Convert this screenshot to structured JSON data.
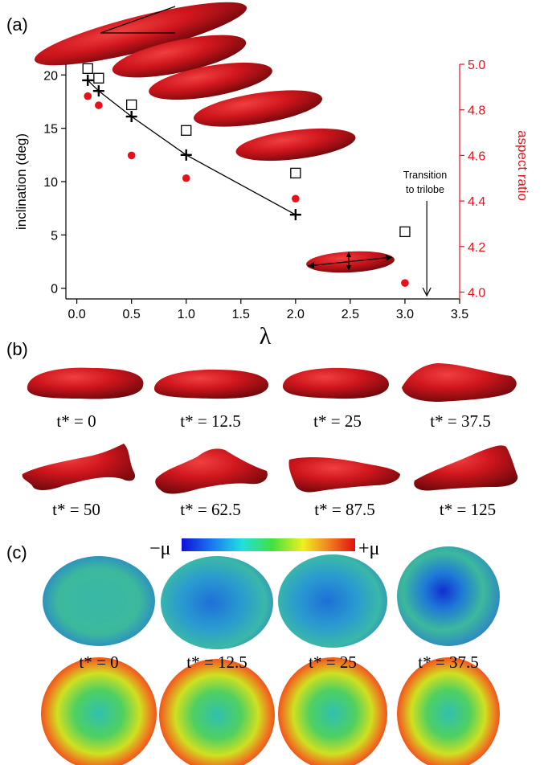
{
  "panel_labels": {
    "a": "(a)",
    "b": "(b)",
    "c": "(c)"
  },
  "chart_data": {
    "type": "scatter",
    "xlabel": "λ",
    "ylabel": "inclination (deg)",
    "y2label": "aspect ratio",
    "xlim": [
      -0.1,
      3.5
    ],
    "ylim": [
      -1,
      21
    ],
    "y2lim": [
      3.97,
      5.0
    ],
    "xticks": [
      "0.0",
      "0.5",
      "1.0",
      "1.5",
      "2.0",
      "2.5",
      "3.0",
      "3.5"
    ],
    "yticks": [
      "0",
      "5",
      "10",
      "15",
      "20"
    ],
    "y2ticks": [
      "4.0",
      "4.2",
      "4.4",
      "4.6",
      "4.8",
      "5.0"
    ],
    "grid": false,
    "series": [
      {
        "marker": "plus-line",
        "color": "#000000",
        "x": [
          0.1,
          0.2,
          0.5,
          1.0,
          2.0
        ],
        "y": [
          19.5,
          18.5,
          16.1,
          12.5,
          6.9
        ]
      },
      {
        "marker": "open-square",
        "color": "#000000",
        "x": [
          0.1,
          0.2,
          0.5,
          1.0,
          2.0,
          3.0
        ],
        "y": [
          20.6,
          19.7,
          17.2,
          14.8,
          10.8,
          5.3
        ]
      },
      {
        "marker": "red-dot",
        "color": "#e8101a",
        "axis": "right",
        "x": [
          0.1,
          0.2,
          0.5,
          1.0,
          2.0,
          3.0
        ],
        "y": [
          4.86,
          4.82,
          4.6,
          4.5,
          4.41,
          4.04
        ]
      }
    ],
    "annotation": {
      "line1": "Transition",
      "line2": "to trilobe",
      "x": 3.2
    }
  },
  "panel_b": {
    "labels": [
      "t* = 0",
      "t* = 12.5",
      "t* = 25",
      "t* = 37.5",
      "t* = 50",
      "t* = 62.5",
      "t* = 87.5",
      "t* = 125"
    ]
  },
  "panel_c": {
    "colorbar_min": "−μ",
    "colorbar_max": "+μ",
    "labels": [
      "t* = 0",
      "t* = 12.5",
      "t* = 25",
      "t* = 37.5"
    ]
  },
  "colors": {
    "shape": "#c8141c",
    "shape_dark": "#7a0a0e",
    "right_axis": "#e8101a"
  }
}
